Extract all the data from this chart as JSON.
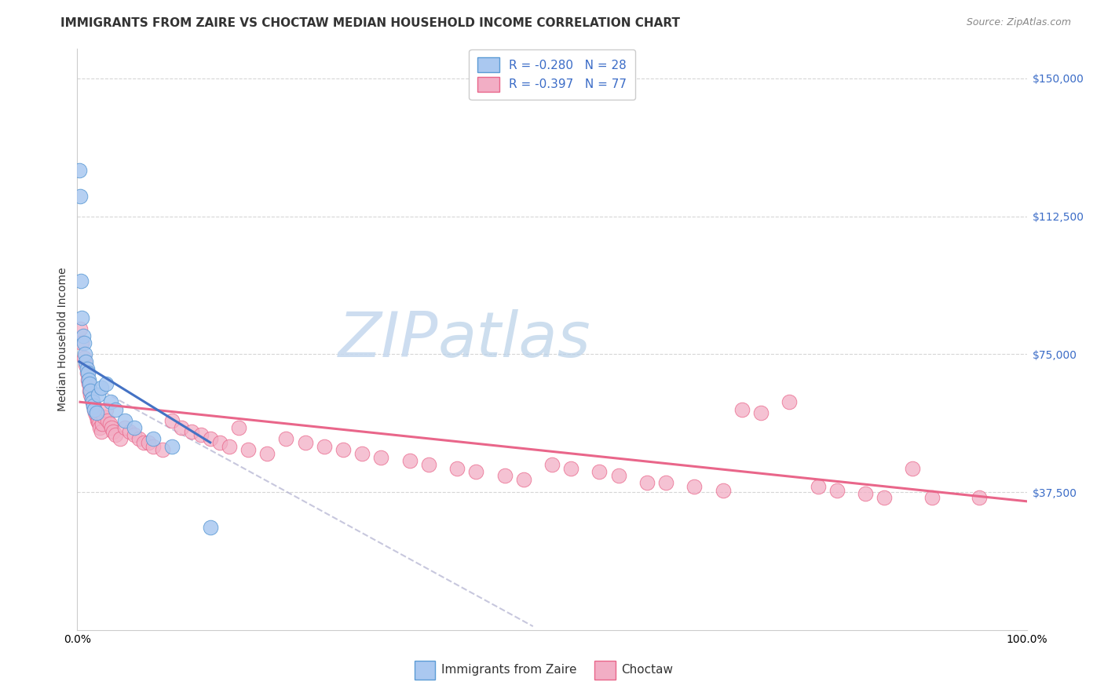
{
  "title": "IMMIGRANTS FROM ZAIRE VS CHOCTAW MEDIAN HOUSEHOLD INCOME CORRELATION CHART",
  "source": "Source: ZipAtlas.com",
  "ylabel": "Median Household Income",
  "yticks": [
    0,
    37500,
    75000,
    112500,
    150000
  ],
  "ytick_labels": [
    "",
    "$37,500",
    "$75,000",
    "$112,500",
    "$150,000"
  ],
  "ymin": 0,
  "ymax": 158000,
  "xmin": 0,
  "xmax": 100,
  "watermark_zip": "ZIP",
  "watermark_atlas": "atlas",
  "blue_label": "Immigrants from Zaire",
  "pink_label": "Choctaw",
  "blue_R": "-0.280",
  "blue_N": "28",
  "pink_R": "-0.397",
  "pink_N": "77",
  "blue_scatter_x": [
    0.2,
    0.3,
    0.4,
    0.5,
    0.6,
    0.7,
    0.8,
    0.9,
    1.0,
    1.1,
    1.2,
    1.3,
    1.4,
    1.5,
    1.6,
    1.7,
    1.8,
    2.0,
    2.2,
    2.5,
    3.0,
    3.5,
    4.0,
    5.0,
    6.0,
    8.0,
    10.0,
    14.0
  ],
  "blue_scatter_y": [
    125000,
    118000,
    95000,
    85000,
    80000,
    78000,
    75000,
    73000,
    71000,
    70000,
    68000,
    67000,
    65000,
    63000,
    62000,
    61000,
    60000,
    59000,
    64000,
    66000,
    67000,
    62000,
    60000,
    57000,
    55000,
    52000,
    50000,
    28000
  ],
  "pink_scatter_x": [
    0.3,
    0.5,
    0.7,
    0.9,
    1.0,
    1.1,
    1.2,
    1.3,
    1.4,
    1.5,
    1.6,
    1.7,
    1.8,
    1.9,
    2.0,
    2.1,
    2.2,
    2.3,
    2.4,
    2.5,
    2.6,
    2.8,
    3.0,
    3.2,
    3.4,
    3.6,
    3.8,
    4.0,
    4.5,
    5.0,
    5.5,
    6.0,
    6.5,
    7.0,
    7.5,
    8.0,
    9.0,
    10.0,
    11.0,
    12.0,
    13.0,
    14.0,
    15.0,
    16.0,
    17.0,
    18.0,
    20.0,
    22.0,
    24.0,
    26.0,
    28.0,
    30.0,
    32.0,
    35.0,
    37.0,
    40.0,
    42.0,
    45.0,
    47.0,
    50.0,
    52.0,
    55.0,
    57.0,
    60.0,
    62.0,
    65.0,
    68.0,
    70.0,
    72.0,
    75.0,
    78.0,
    80.0,
    83.0,
    85.0,
    88.0,
    90.0,
    95.0
  ],
  "pink_scatter_y": [
    82000,
    78000,
    74000,
    72000,
    70000,
    68000,
    67000,
    65000,
    64000,
    63000,
    62000,
    61000,
    60000,
    59000,
    58000,
    57000,
    57000,
    56000,
    55000,
    54000,
    56000,
    58000,
    60000,
    57000,
    56000,
    55000,
    54000,
    53000,
    52000,
    55000,
    54000,
    53000,
    52000,
    51000,
    51000,
    50000,
    49000,
    57000,
    55000,
    54000,
    53000,
    52000,
    51000,
    50000,
    55000,
    49000,
    48000,
    52000,
    51000,
    50000,
    49000,
    48000,
    47000,
    46000,
    45000,
    44000,
    43000,
    42000,
    41000,
    45000,
    44000,
    43000,
    42000,
    40000,
    40000,
    39000,
    38000,
    60000,
    59000,
    62000,
    39000,
    38000,
    37000,
    36000,
    44000,
    36000,
    36000
  ],
  "blue_line_x": [
    0.2,
    14.0
  ],
  "blue_line_y": [
    73000,
    51000
  ],
  "pink_line_x": [
    0.3,
    100.0
  ],
  "pink_line_y": [
    62000,
    35000
  ],
  "dashed_line_x": [
    1.2,
    48.0
  ],
  "dashed_line_y": [
    67000,
    1000
  ],
  "title_fontsize": 11,
  "axis_label_fontsize": 10,
  "tick_label_fontsize": 10,
  "legend_fontsize": 11,
  "background_color": "#ffffff",
  "grid_color": "#cccccc",
  "blue_marker_color": "#aac8f0",
  "blue_edge_color": "#5b9bd5",
  "pink_marker_color": "#f2aec5",
  "pink_edge_color": "#e9668a",
  "blue_line_color": "#4472c4",
  "pink_line_color": "#e9668a",
  "right_tick_color": "#3b6cc7",
  "legend_text_color": "#3b6cc7",
  "source_color": "#888888"
}
